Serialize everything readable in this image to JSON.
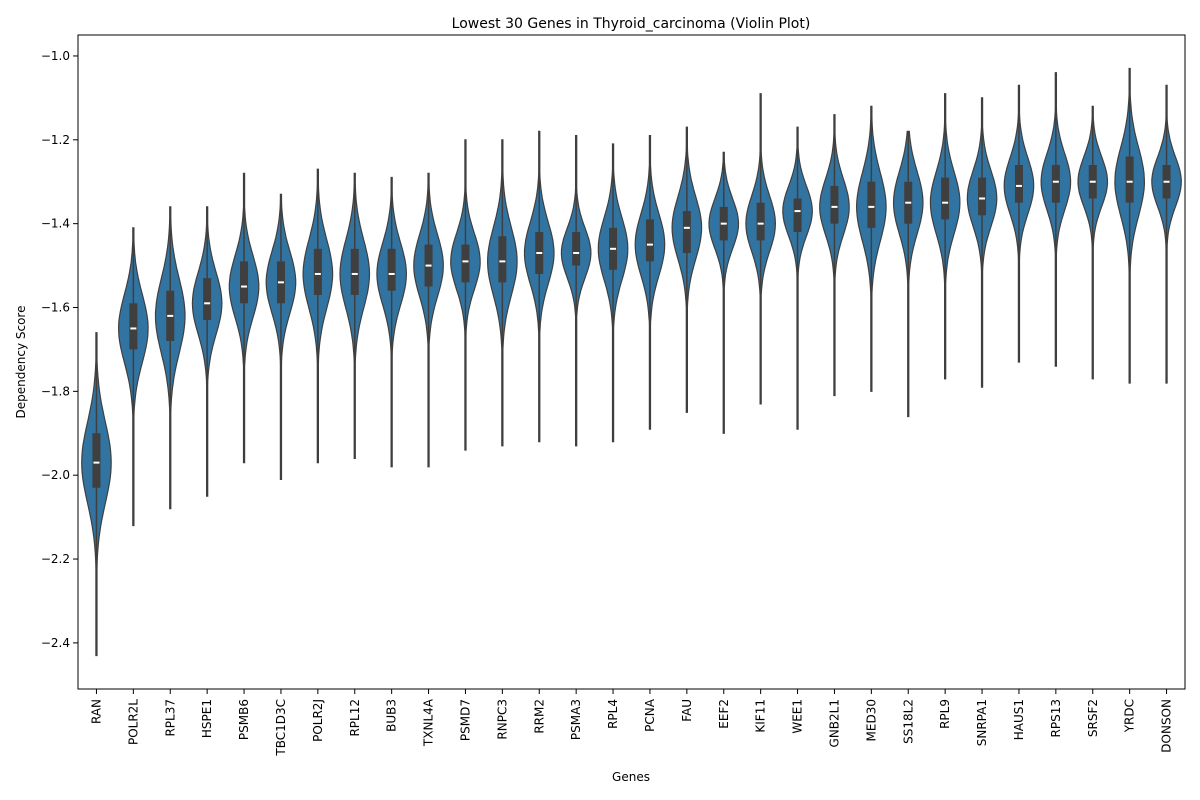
{
  "chart_data": {
    "type": "violin",
    "title": "Lowest 30 Genes in Thyroid_carcinoma (Violin Plot)",
    "xlabel": "Genes",
    "ylabel": "Dependency Score",
    "ylim": [
      -2.51,
      -0.95
    ],
    "yticks": [
      -2.4,
      -2.2,
      -2.0,
      -1.8,
      -1.6,
      -1.4,
      -1.2,
      -1.0
    ],
    "ytick_labels": [
      "−2.4",
      "−2.2",
      "−2.0",
      "−1.8",
      "−1.6",
      "−1.4",
      "−1.2",
      "−1.0"
    ],
    "color": "#3274a1",
    "box_color": "#3f3f3f",
    "grid": false,
    "categories": [
      "RAN",
      "POLR2L",
      "RPL37",
      "HSPE1",
      "PSMB6",
      "TBC1D3C",
      "POLR2J",
      "RPL12",
      "BUB3",
      "TXNL4A",
      "PSMD7",
      "RNPC3",
      "RRM2",
      "PSMA3",
      "RPL4",
      "PCNA",
      "FAU",
      "EEF2",
      "KIF11",
      "WEE1",
      "GNB2L1",
      "MED30",
      "SS18L2",
      "RPL9",
      "SNRPA1",
      "HAUS1",
      "RPS13",
      "SRSF2",
      "YRDC",
      "DONSON"
    ],
    "violins": [
      {
        "min": -2.43,
        "q1": -2.03,
        "median": -1.97,
        "q3": -1.9,
        "max": -1.66
      },
      {
        "min": -2.12,
        "q1": -1.7,
        "median": -1.65,
        "q3": -1.59,
        "max": -1.41
      },
      {
        "min": -2.08,
        "q1": -1.68,
        "median": -1.62,
        "q3": -1.56,
        "max": -1.36
      },
      {
        "min": -2.05,
        "q1": -1.63,
        "median": -1.59,
        "q3": -1.53,
        "max": -1.36
      },
      {
        "min": -1.97,
        "q1": -1.59,
        "median": -1.55,
        "q3": -1.49,
        "max": -1.28
      },
      {
        "min": -2.01,
        "q1": -1.59,
        "median": -1.54,
        "q3": -1.49,
        "max": -1.33
      },
      {
        "min": -1.97,
        "q1": -1.57,
        "median": -1.52,
        "q3": -1.46,
        "max": -1.27
      },
      {
        "min": -1.96,
        "q1": -1.57,
        "median": -1.52,
        "q3": -1.46,
        "max": -1.28
      },
      {
        "min": -1.98,
        "q1": -1.56,
        "median": -1.52,
        "q3": -1.46,
        "max": -1.29
      },
      {
        "min": -1.98,
        "q1": -1.55,
        "median": -1.5,
        "q3": -1.45,
        "max": -1.28
      },
      {
        "min": -1.94,
        "q1": -1.54,
        "median": -1.49,
        "q3": -1.45,
        "max": -1.2
      },
      {
        "min": -1.93,
        "q1": -1.54,
        "median": -1.49,
        "q3": -1.43,
        "max": -1.2
      },
      {
        "min": -1.92,
        "q1": -1.52,
        "median": -1.47,
        "q3": -1.42,
        "max": -1.18
      },
      {
        "min": -1.93,
        "q1": -1.5,
        "median": -1.47,
        "q3": -1.42,
        "max": -1.19
      },
      {
        "min": -1.92,
        "q1": -1.51,
        "median": -1.46,
        "q3": -1.41,
        "max": -1.21
      },
      {
        "min": -1.89,
        "q1": -1.49,
        "median": -1.45,
        "q3": -1.39,
        "max": -1.19
      },
      {
        "min": -1.85,
        "q1": -1.47,
        "median": -1.41,
        "q3": -1.37,
        "max": -1.17
      },
      {
        "min": -1.9,
        "q1": -1.44,
        "median": -1.4,
        "q3": -1.36,
        "max": -1.23
      },
      {
        "min": -1.83,
        "q1": -1.44,
        "median": -1.4,
        "q3": -1.35,
        "max": -1.09
      },
      {
        "min": -1.89,
        "q1": -1.42,
        "median": -1.37,
        "q3": -1.34,
        "max": -1.17
      },
      {
        "min": -1.81,
        "q1": -1.4,
        "median": -1.36,
        "q3": -1.31,
        "max": -1.14
      },
      {
        "min": -1.8,
        "q1": -1.41,
        "median": -1.36,
        "q3": -1.3,
        "max": -1.12
      },
      {
        "min": -1.86,
        "q1": -1.4,
        "median": -1.35,
        "q3": -1.3,
        "max": -1.18
      },
      {
        "min": -1.77,
        "q1": -1.39,
        "median": -1.35,
        "q3": -1.29,
        "max": -1.09
      },
      {
        "min": -1.79,
        "q1": -1.38,
        "median": -1.34,
        "q3": -1.29,
        "max": -1.1
      },
      {
        "min": -1.73,
        "q1": -1.35,
        "median": -1.31,
        "q3": -1.26,
        "max": -1.07
      },
      {
        "min": -1.74,
        "q1": -1.35,
        "median": -1.3,
        "q3": -1.26,
        "max": -1.04
      },
      {
        "min": -1.77,
        "q1": -1.34,
        "median": -1.3,
        "q3": -1.26,
        "max": -1.12
      },
      {
        "min": -1.78,
        "q1": -1.35,
        "median": -1.3,
        "q3": -1.24,
        "max": -1.03
      },
      {
        "min": -1.78,
        "q1": -1.34,
        "median": -1.3,
        "q3": -1.26,
        "max": -1.07
      }
    ]
  }
}
